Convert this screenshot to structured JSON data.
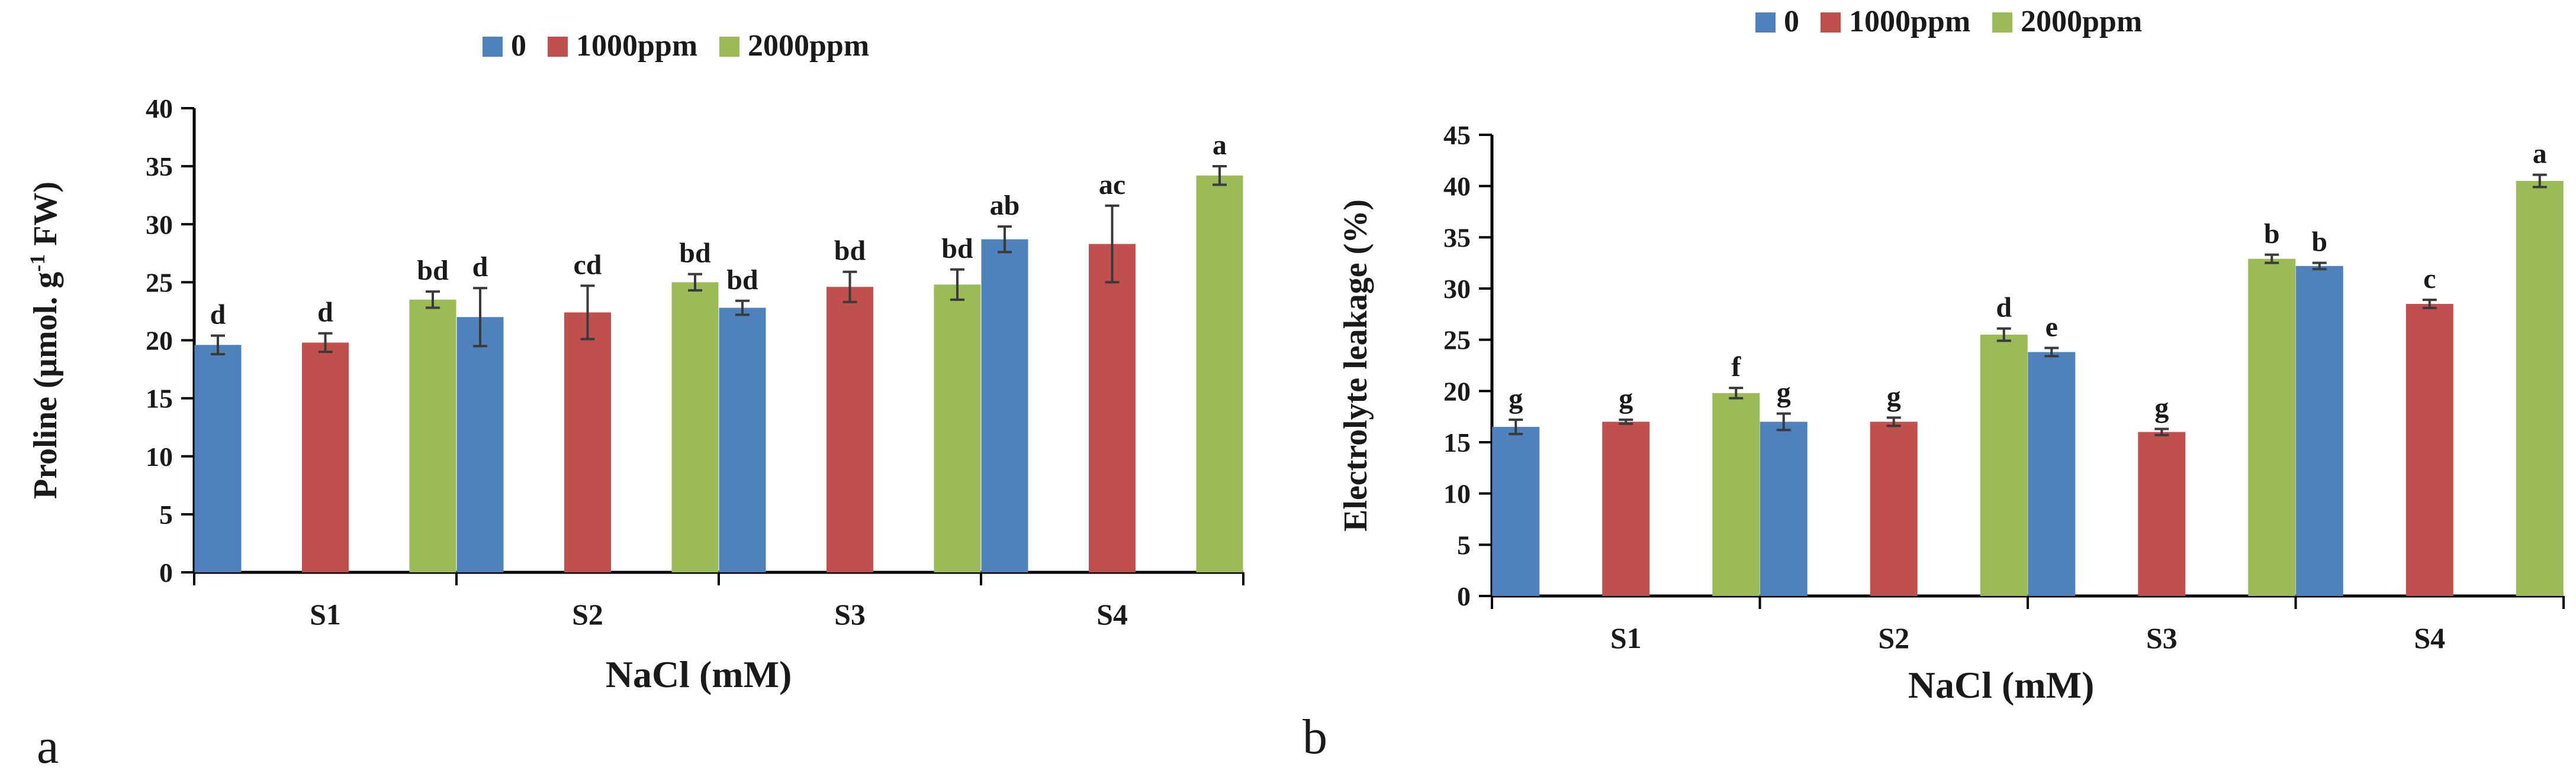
{
  "chart_data": [
    {
      "panel": "a",
      "type": "bar",
      "title": "",
      "xlabel": "NaCl (mM)",
      "ylabel_main": "Proline (µmol. g",
      "ylabel_sup": "-1",
      "ylabel_end": " FW)",
      "ylim": [
        0,
        40
      ],
      "yticks": [
        "0",
        "5",
        "10",
        "15",
        "20",
        "25",
        "30",
        "35",
        "40"
      ],
      "categories": [
        "S1",
        "S2",
        "S3",
        "S4"
      ],
      "legend_position": "top-center",
      "series": [
        {
          "name": "0",
          "color": "#4F81BD",
          "values": [
            19.6,
            22.0,
            22.8,
            28.7
          ],
          "errors": [
            0.8,
            2.5,
            0.6,
            1.1
          ],
          "labels": [
            "d",
            "d",
            "bd",
            "ab"
          ]
        },
        {
          "name": "1000ppm",
          "color": "#C0504D",
          "values": [
            19.8,
            22.4,
            24.6,
            28.3
          ],
          "errors": [
            0.8,
            2.3,
            1.3,
            3.3
          ],
          "labels": [
            "d",
            "cd",
            "bd",
            "ac"
          ]
        },
        {
          "name": "2000ppm",
          "color": "#9BBB59",
          "values": [
            23.5,
            25.0,
            24.8,
            34.2
          ],
          "errors": [
            0.7,
            0.7,
            1.3,
            0.8
          ],
          "labels": [
            "bd",
            "bd",
            "bd",
            "a"
          ]
        }
      ]
    },
    {
      "panel": "b",
      "type": "bar",
      "title": "",
      "xlabel": "NaCl (mM)",
      "ylabel_main": "Electrolyte leakage (%)",
      "ylabel_sup": "",
      "ylabel_end": "",
      "ylim": [
        0,
        45
      ],
      "yticks": [
        "0",
        "5",
        "10",
        "15",
        "20",
        "25",
        "30",
        "35",
        "40",
        "45"
      ],
      "categories": [
        "S1",
        "S2",
        "S3",
        "S4"
      ],
      "legend_position": "top-center",
      "series": [
        {
          "name": "0",
          "color": "#4F81BD",
          "values": [
            16.5,
            17.0,
            23.8,
            32.2
          ],
          "errors": [
            0.7,
            0.8,
            0.4,
            0.3
          ],
          "labels": [
            "g",
            "g",
            "e",
            "b"
          ]
        },
        {
          "name": "1000ppm",
          "color": "#C0504D",
          "values": [
            17.0,
            17.0,
            16.0,
            28.5
          ],
          "errors": [
            0.2,
            0.4,
            0.3,
            0.4
          ],
          "labels": [
            "g",
            "g",
            "g",
            "c"
          ]
        },
        {
          "name": "2000ppm",
          "color": "#9BBB59",
          "values": [
            19.8,
            25.5,
            32.9,
            40.5
          ],
          "errors": [
            0.5,
            0.6,
            0.4,
            0.6
          ],
          "labels": [
            "f",
            "d",
            "b",
            "a"
          ]
        }
      ]
    }
  ]
}
